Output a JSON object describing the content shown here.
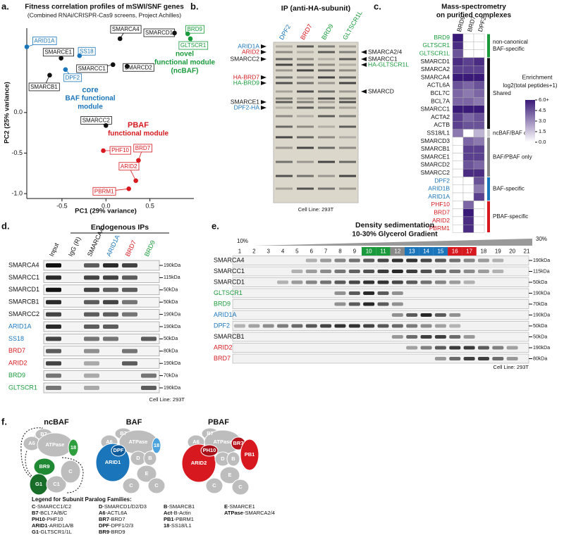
{
  "chart_data": [
    {
      "type": "scatter",
      "letter": "a.",
      "title": "Fitness correlation profiles of mSWI/SNF genes",
      "subtitle": "(Combined RNAi/CRISPR-Cas9 screens, Project Achilles)",
      "xlabel": "PC1 (29% variance)",
      "ylabel": "PC2 (25% variance)",
      "xlim": [
        -0.9,
        1.0
      ],
      "ylim": [
        -1.06,
        1.04
      ],
      "xticks": [
        -0.5,
        {
          "value": 0,
          "label": "0.0"
        },
        0.5
      ],
      "yticks": [
        {
          "value": 0,
          "label": "0.0"
        },
        -0.5,
        {
          "value": -1,
          "label": "-1.0"
        }
      ],
      "points": [
        {
          "label": "ARID1A",
          "x": -0.9,
          "y": 0.81,
          "color": "#1b75bb"
        },
        {
          "label": "SMARCA4",
          "x": 0.16,
          "y": 0.91,
          "color": "#111111"
        },
        {
          "label": "SMARCD1",
          "x": 0.78,
          "y": 0.98,
          "color": "#111111"
        },
        {
          "label": "BRD9",
          "x": 0.93,
          "y": 0.97,
          "color": "#1a9a3c"
        },
        {
          "label": "GLTSCR1",
          "x": 0.96,
          "y": 0.91,
          "color": "#1a9a3c"
        },
        {
          "label": "SMARCE1",
          "x": -0.51,
          "y": 0.67,
          "color": "#111111"
        },
        {
          "label": "SS18",
          "x": -0.3,
          "y": 0.7,
          "color": "#1b75bb"
        },
        {
          "label": "SMARCC1",
          "x": 0.08,
          "y": 0.59,
          "color": "#111111"
        },
        {
          "label": "SMARCD2",
          "x": 0.24,
          "y": 0.57,
          "color": "#111111"
        },
        {
          "label": "DPF2",
          "x": -0.46,
          "y": 0.53,
          "color": "#1b75bb"
        },
        {
          "label": "SMARCB1",
          "x": -0.64,
          "y": 0.46,
          "color": "#111111"
        },
        {
          "label": "SMARCC2",
          "x": 0.0,
          "y": -0.16,
          "color": "#111111"
        },
        {
          "label": "PHF10",
          "x": -0.03,
          "y": -0.47,
          "color": "#d7191f"
        },
        {
          "label": "BRD7",
          "x": 0.37,
          "y": -0.59,
          "color": "#d7191f"
        },
        {
          "label": "ARID2",
          "x": 0.34,
          "y": -0.84,
          "color": "#d7191f"
        },
        {
          "label": "PBRM1",
          "x": 0.26,
          "y": -0.94,
          "color": "#d7191f"
        }
      ],
      "annotations": [
        {
          "lines": [
            "core",
            "BAF functional",
            "module"
          ],
          "color": "#1b75bb"
        },
        {
          "lines": [
            "novel",
            "functional module",
            "(ncBAF)"
          ],
          "color": "#1a9a3c"
        },
        {
          "lines": [
            "PBAF",
            "functional module"
          ],
          "color": "#d7191f"
        }
      ]
    },
    {
      "type": "heatmap",
      "letter": "c.",
      "title": [
        "Mass-spectrometry",
        "on purified complexes"
      ],
      "columns": [
        "BRD9",
        "BRD7",
        "DPF2"
      ],
      "rows": [
        "BRD9",
        "GLTSCR1",
        "GLTSCR1L",
        "SMARCD1",
        "SMARCA2",
        "SMARCA4",
        "ACTL6A",
        "BCL7C",
        "BCL7A",
        "SMARCC1",
        "ACTA2",
        "ACTB",
        "SS18/L1",
        "SMARCD3",
        "SMARCB1",
        "SMARCE1",
        "SMARCD2",
        "SMARCC2",
        "DPF2",
        "ARID1B",
        "ARID1A",
        "PHF10",
        "BRD7",
        "ARID2",
        "PBRM1"
      ],
      "row_colors": [
        "#1a9a3c",
        "#1a9a3c",
        "#1a9a3c",
        "#111111",
        "#111111",
        "#111111",
        "#111111",
        "#111111",
        "#111111",
        "#111111",
        "#111111",
        "#111111",
        "#111111",
        "#111111",
        "#111111",
        "#111111",
        "#111111",
        "#111111",
        "#1b75bb",
        "#1b75bb",
        "#1b75bb",
        "#d7191f",
        "#d7191f",
        "#d7191f",
        "#d7191f"
      ],
      "values": [
        [
          6,
          0,
          0
        ],
        [
          5.5,
          0,
          0
        ],
        [
          4.5,
          0,
          0
        ],
        [
          5.5,
          5,
          5.5
        ],
        [
          5,
          5,
          5
        ],
        [
          6,
          6,
          6
        ],
        [
          4.5,
          4,
          4.5
        ],
        [
          4,
          3.5,
          4
        ],
        [
          4,
          4,
          3.5
        ],
        [
          6,
          6,
          6
        ],
        [
          5,
          4,
          4.5
        ],
        [
          5,
          4.5,
          4.5
        ],
        [
          3.5,
          0,
          2
        ],
        [
          0,
          4,
          3.5
        ],
        [
          0,
          5,
          5
        ],
        [
          0,
          5,
          5
        ],
        [
          0,
          4.5,
          4
        ],
        [
          0,
          5.5,
          5.5
        ],
        [
          0,
          0,
          4.5
        ],
        [
          0,
          0,
          3.5
        ],
        [
          0,
          0,
          5
        ],
        [
          0,
          4,
          0
        ],
        [
          0,
          6,
          0
        ],
        [
          0,
          5.5,
          0
        ],
        [
          0,
          5.5,
          0
        ]
      ],
      "clim": [
        0,
        6
      ],
      "colorbar_title": "Enrichment",
      "colorbar_subtitle": "log2(total peptides+1)",
      "colorbar_ticks": [
        {
          "value": 6,
          "label": "6.0+"
        },
        4.5,
        {
          "value": 3,
          "label": "3.0"
        },
        1.5,
        {
          "value": 0,
          "label": "0.0"
        }
      ],
      "groups": [
        {
          "lines": [
            "non-canonical",
            "BAF-specific"
          ],
          "start": 0,
          "end": 2,
          "color": "#1a9a3c"
        },
        {
          "lines": [
            "Shared"
          ],
          "start": 3,
          "end": 11,
          "color": "#111111"
        },
        {
          "lines": [
            "ncBAF/BAF only"
          ],
          "start": 12,
          "end": 12,
          "color": "#cccccc"
        },
        {
          "lines": [
            "BAF/PBAF only"
          ],
          "start": 13,
          "end": 17,
          "color": "#888888"
        },
        {
          "lines": [
            "BAF-specific"
          ],
          "start": 18,
          "end": 20,
          "color": "#1b75bb"
        },
        {
          "lines": [
            "PBAF-specific"
          ],
          "start": 21,
          "end": 24,
          "color": "#d7191f"
        }
      ]
    }
  ],
  "panels": {
    "b": {
      "letter": "b.",
      "title": "IP (anti-HA-subunit)",
      "lanes": [
        {
          "label": "DPF2",
          "color": "#1b75bb"
        },
        {
          "label": "BRD7",
          "color": "#d7191f"
        },
        {
          "label": "BRD9",
          "color": "#1a9a3c"
        },
        {
          "label": "GLTSCR1L",
          "color": "#1a9a3c"
        }
      ],
      "left_labels": [
        {
          "label": "ARID1A",
          "color": "#1b75bb"
        },
        {
          "label": "ARID2",
          "color": "#d7191f"
        },
        {
          "label": "SMARCC2",
          "color": "#111111"
        },
        {
          "label": "HA-BRD7",
          "color": "#d7191f"
        },
        {
          "label": "HA-BRD9",
          "color": "#1a9a3c"
        },
        {
          "label": "SMARCE1",
          "color": "#111111"
        },
        {
          "label": "DPF2-HA",
          "color": "#1b75bb"
        }
      ],
      "right_labels": [
        {
          "label": "SMARCA2/4",
          "color": "#111111"
        },
        {
          "label": "SMARCC1",
          "color": "#111111"
        },
        {
          "label": "HA-GLTSCR1L",
          "color": "#1a9a3c"
        },
        {
          "label": "SMARCD",
          "color": "#111111"
        }
      ],
      "footer": "Cell Line: 293T"
    },
    "d": {
      "letter": "d.",
      "title": "Endogenous IPs",
      "lanes": [
        {
          "label": "Input",
          "color": "#111111"
        },
        {
          "label": "IgG (R)",
          "color": "#111111"
        },
        {
          "label": "SMARCA4",
          "color": "#111111"
        },
        {
          "label": "ARID1A",
          "color": "#1b75bb"
        },
        {
          "label": "BRD7",
          "color": "#d7191f"
        },
        {
          "label": "BRD9",
          "color": "#1a9a3c"
        }
      ],
      "rows": [
        {
          "label": "SMARCA4",
          "color": "#111111",
          "marker": "190kDa"
        },
        {
          "label": "SMARCC1",
          "color": "#111111",
          "marker": "115kDa"
        },
        {
          "label": "SMARCD1",
          "color": "#111111",
          "marker": "50kDa"
        },
        {
          "label": "SMARCB1",
          "color": "#111111",
          "marker": "50kDa"
        },
        {
          "label": "SMARCC2",
          "color": "#111111",
          "marker": "190kDa"
        },
        {
          "label": "ARID1A",
          "color": "#1b75bb",
          "marker": "190kDa"
        },
        {
          "label": "SS18",
          "color": "#1b75bb",
          "marker": "50kDa"
        },
        {
          "label": "BRD7",
          "color": "#d7191f",
          "marker": "80kDa"
        },
        {
          "label": "ARID2",
          "color": "#d7191f",
          "marker": "190kDa"
        },
        {
          "label": "BRD9",
          "color": "#1a9a3c",
          "marker": "70kDa"
        },
        {
          "label": "GLTSCR1",
          "color": "#1a9a3c",
          "marker": "190kDa"
        }
      ],
      "footer": "Cell Line: 293T"
    },
    "e": {
      "letter": "e.",
      "title": "Density sedimentation",
      "subtitle": "10-30% Glycerol Gradient",
      "gradient_start": "10%",
      "gradient_end": "30%",
      "fractions": [
        1,
        2,
        3,
        4,
        5,
        6,
        7,
        8,
        9,
        10,
        11,
        12,
        13,
        14,
        15,
        16,
        17,
        18,
        19,
        20,
        21
      ],
      "highlights": [
        {
          "fractions": [
            10,
            11
          ],
          "color": "#1a9a3c"
        },
        {
          "fractions": [
            12
          ],
          "color": "#888888"
        },
        {
          "fractions": [
            13,
            14,
            15
          ],
          "color": "#1b75bb"
        },
        {
          "fractions": [
            16,
            17
          ],
          "color": "#d7191f"
        }
      ],
      "rows": [
        {
          "label": "SMARCA4",
          "color": "#111111",
          "marker": "190kDa"
        },
        {
          "label": "SMARCC1",
          "color": "#111111",
          "marker": "115kDa"
        },
        {
          "label": "SMARCD1",
          "color": "#111111",
          "marker": "50kDa"
        },
        {
          "label": "GLTSCR1",
          "color": "#1a9a3c",
          "marker": "190kDa"
        },
        {
          "label": "BRD9",
          "color": "#1a9a3c",
          "marker": "70kDa"
        },
        {
          "label": "ARID1A",
          "color": "#1b75bb",
          "marker": "190kDa"
        },
        {
          "label": "DPF2",
          "color": "#1b75bb",
          "marker": "50kDa"
        },
        {
          "label": "SMARCB1",
          "color": "#111111",
          "marker": "50kDa"
        },
        {
          "label": "ARID2",
          "color": "#d7191f",
          "marker": "190kDa"
        },
        {
          "label": "BRD7",
          "color": "#d7191f",
          "marker": "80kDa"
        }
      ],
      "footer": "Cell Line: 293T"
    },
    "f": {
      "letter": "f.",
      "complexes": [
        {
          "name": "ncBAF",
          "labels": [
            "B7",
            "A6",
            "ATPase",
            "18",
            "BR9",
            "G1",
            "C1",
            "C"
          ]
        },
        {
          "name": "BAF",
          "labels": [
            "B7",
            "A6",
            "ATPase",
            "18",
            "ARID1",
            "DPF",
            "D",
            "B",
            "E",
            "C",
            "C"
          ]
        },
        {
          "name": "PBAF",
          "labels": [
            "B7",
            "A6",
            "ATPase",
            "ARID2",
            "PH10",
            "BR7",
            "PB1",
            "D",
            "B",
            "E",
            "C",
            "C"
          ]
        }
      ],
      "legend_title": "Legend for Subunit Paralog Families:",
      "legend": [
        {
          "key": "C",
          "text": "-SMARCC1/C2"
        },
        {
          "key": "B7",
          "text": "-BCL7A/B/C"
        },
        {
          "key": "PH10",
          "text": "-PHF10"
        },
        {
          "key": "ARID1",
          "text": "-ARID1A/B"
        },
        {
          "key": "G1",
          "text": "-GLTSCR1/1L"
        },
        {
          "key": "D",
          "text": "-SMARCD1/D2/D3"
        },
        {
          "key": "A6",
          "text": "-ACTL6A"
        },
        {
          "key": "BR7",
          "text": "-BRD7"
        },
        {
          "key": "DPF",
          "text": "-DPF1/2/3"
        },
        {
          "key": "BR9",
          "text": "-BRD9"
        },
        {
          "key": "B",
          "text": "-SMARCB1"
        },
        {
          "key": "Act",
          "text": "-B-Actin"
        },
        {
          "key": "PB1",
          "text": "-PBRM1"
        },
        {
          "key": "18",
          "text": "-SS18/L1"
        },
        {
          "key": "E",
          "text": "-SMARCE1"
        },
        {
          "key": "ATPase",
          "text": "-SMARCA2/4"
        }
      ]
    }
  }
}
